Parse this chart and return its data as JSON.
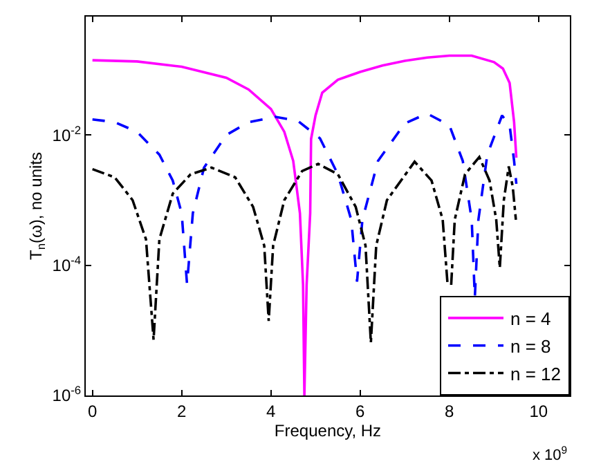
{
  "chart_data": {
    "type": "line",
    "xlabel": "Frequency, Hz",
    "ylabel": "T$_{n}$(ω), no units",
    "log": "y",
    "legend": "bottom right",
    "marker": "none",
    "xlim": [
      -0.15,
      10.7
    ],
    "ylim": [
      1e-06,
      0.66
    ],
    "xticks": [
      0,
      2,
      4,
      6,
      8,
      10
    ],
    "yticks": [
      {
        "value": 1e-06,
        "label": "10$^{-6}$"
      },
      {
        "value": 0.0001,
        "label": "10$^{-4}$"
      },
      {
        "value": 0.01,
        "label": "10$^{-2}$"
      }
    ],
    "annotations": [
      "x 10$^{9}$"
    ],
    "series": [
      {
        "name": "n = 4",
        "color": "#ff00ff",
        "line_style": "solid",
        "x": [
          0,
          1,
          2,
          3,
          3.5,
          4,
          4.3,
          4.5,
          4.65,
          4.72,
          4.75,
          4.8,
          4.88,
          4.9,
          5.0,
          5.15,
          5.5,
          6,
          6.5,
          7,
          7.5,
          8,
          8.5,
          9,
          9.2,
          9.35,
          9.45,
          9.5
        ],
        "values": [
          0.141,
          0.135,
          0.112,
          0.0759,
          0.0501,
          0.0251,
          0.0112,
          0.004,
          0.00063,
          5e-05,
          1e-06,
          5e-05,
          0.00063,
          0.0087,
          0.02,
          0.0447,
          0.0708,
          0.0933,
          0.117,
          0.138,
          0.155,
          0.166,
          0.166,
          0.132,
          0.105,
          0.0631,
          0.0158,
          0.0045
        ]
      },
      {
        "name": "n = 8",
        "color": "#0000ff",
        "line_style": "dashed",
        "x": [
          0,
          0.5,
          1,
          1.5,
          1.8,
          2.0,
          2.12,
          2.25,
          2.5,
          3,
          3.5,
          4.1,
          4.6,
          5.1,
          5.5,
          5.8,
          5.93,
          6.05,
          6.4,
          7,
          7.5,
          8,
          8.3,
          8.5,
          8.57,
          8.65,
          8.85,
          9.18,
          9.35,
          9.45,
          9.5
        ],
        "values": [
          0.0174,
          0.0158,
          0.0112,
          0.005,
          0.002,
          0.00063,
          5.1e-05,
          0.00063,
          0.00316,
          0.01,
          0.0158,
          0.019,
          0.0166,
          0.0089,
          0.0025,
          0.0005,
          5.6e-05,
          0.0005,
          0.004,
          0.0151,
          0.0214,
          0.0141,
          0.004,
          0.0005,
          3.2e-05,
          0.0005,
          0.005,
          0.02,
          0.0141,
          0.004,
          0.00178
        ]
      },
      {
        "name": "n = 12",
        "color": "#000000",
        "line_style": "dashdot",
        "x": [
          0,
          0.5,
          0.9,
          1.2,
          1.37,
          1.5,
          1.8,
          2.2,
          2.67,
          3.2,
          3.6,
          3.85,
          3.95,
          4.05,
          4.3,
          4.7,
          5.06,
          5.5,
          5.9,
          6.12,
          6.24,
          6.36,
          6.6,
          7.22,
          7.6,
          7.85,
          7.96,
          8.0,
          8.04,
          8.12,
          8.35,
          8.67,
          8.9,
          9.05,
          9.13,
          9.22,
          9.33,
          9.42,
          9.49
        ],
        "values": [
          0.003,
          0.00224,
          0.001,
          0.00025,
          7.2e-06,
          0.00025,
          0.00126,
          0.0025,
          0.00316,
          0.00224,
          0.00079,
          0.0002,
          1.4e-05,
          0.0002,
          0.001,
          0.0028,
          0.0036,
          0.0025,
          0.00079,
          0.0002,
          6.5e-06,
          0.0002,
          0.001,
          0.0039,
          0.002,
          0.0005,
          5e-05,
          null,
          5e-05,
          0.0005,
          0.0025,
          0.0046,
          0.002,
          0.0005,
          9.1e-05,
          0.001,
          0.0033,
          0.0016,
          0.0005
        ]
      }
    ]
  }
}
